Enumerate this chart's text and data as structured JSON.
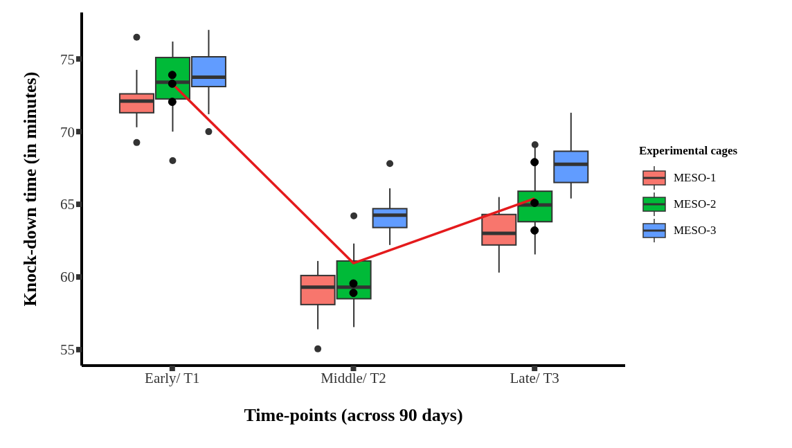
{
  "chart_data": {
    "type": "box",
    "xlabel": "Time-points (across 90 days)",
    "ylabel": "Knock-down time (in minutes)",
    "legend_title": "Experimental cages",
    "legend": "right",
    "categories": [
      "Early/ T1",
      "Middle/ T2",
      "Late/ T3"
    ],
    "ylim": [
      53.9,
      78.2
    ],
    "yticks": [
      55,
      60,
      65,
      70,
      75
    ],
    "series": [
      {
        "name": "MESO-1",
        "color": "#f8766d",
        "boxes": [
          {
            "low": 70.3,
            "q1": 71.3,
            "median": 72.1,
            "q3": 72.6,
            "high": 74.25,
            "outliers": [
              76.5,
              69.25
            ]
          },
          {
            "low": 56.4,
            "q1": 58.1,
            "median": 59.3,
            "q3": 60.1,
            "high": 61.1,
            "outliers": [
              55.05
            ]
          },
          {
            "low": 60.3,
            "q1": 62.2,
            "median": 63.0,
            "q3": 64.3,
            "high": 65.5
          }
        ]
      },
      {
        "name": "MESO-2",
        "color": "#00ba38",
        "boxes": [
          {
            "low": 70.0,
            "q1": 72.25,
            "median": 73.4,
            "q3": 75.1,
            "high": 76.2,
            "outliers": [
              68.0
            ]
          },
          {
            "low": 56.55,
            "q1": 58.5,
            "median": 59.3,
            "q3": 61.1,
            "high": 62.3,
            "outliers": [
              64.2
            ]
          },
          {
            "low": 61.55,
            "q1": 63.8,
            "median": 64.95,
            "q3": 65.9,
            "high": 68.9,
            "outliers": [
              69.1
            ]
          }
        ]
      },
      {
        "name": "MESO-3",
        "color": "#619cff",
        "boxes": [
          {
            "low": 71.2,
            "q1": 73.1,
            "median": 73.75,
            "q3": 75.15,
            "high": 77.0,
            "outliers": [
              70.0
            ]
          },
          {
            "low": 62.2,
            "q1": 63.4,
            "median": 64.25,
            "q3": 64.7,
            "high": 66.1,
            "outliers": [
              67.8
            ]
          },
          {
            "low": 65.4,
            "q1": 66.5,
            "median": 67.75,
            "q3": 68.65,
            "high": 71.3
          }
        ]
      },
      {
        "type": "line",
        "color": "#e41a1c",
        "values": [
          73.3,
          60.95,
          65.4
        ]
      },
      {
        "type": "scatter",
        "color": "#000000",
        "x": [
          "Early/ T1",
          "Early/ T1",
          "Early/ T1",
          "Middle/ T2",
          "Middle/ T2",
          "Late/ T3",
          "Late/ T3",
          "Late/ T3"
        ],
        "values": [
          73.9,
          73.3,
          72.05,
          59.55,
          58.9,
          67.9,
          65.1,
          63.2
        ]
      }
    ]
  }
}
